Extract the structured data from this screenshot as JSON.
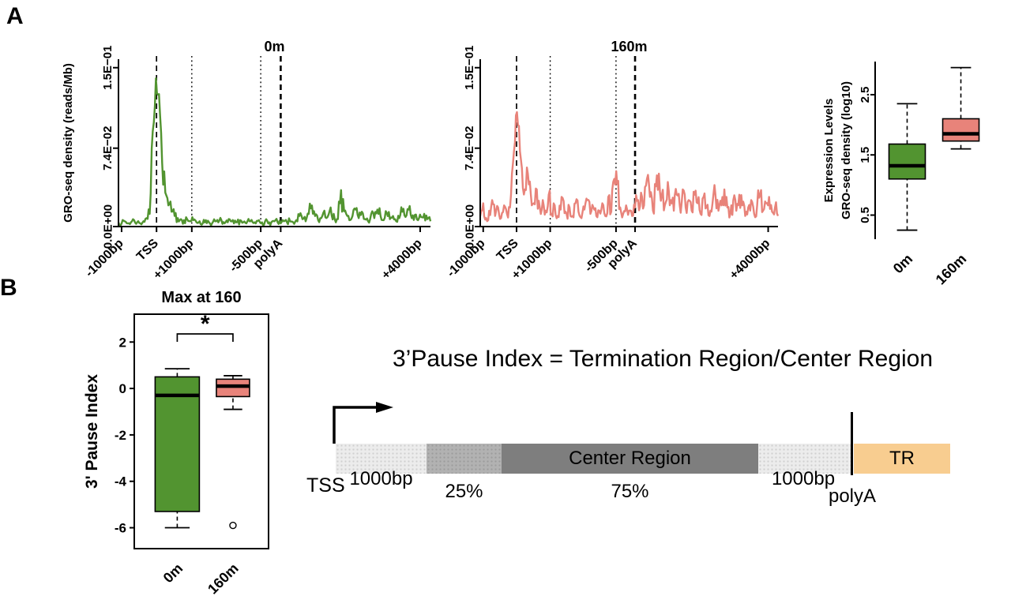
{
  "panel_labels": {
    "a": "A",
    "b": "B"
  },
  "colors": {
    "green": "#529430",
    "red": "#e8837a",
    "orange": "#f8cd90",
    "gray_light": "#ececec",
    "gray_mid": "#b2b2b2",
    "gray_dark": "#7e7e7e"
  },
  "chart_data": [
    {
      "id": "gro_0m",
      "type": "line",
      "title": "0m",
      "ylabel": "GRO-seq density (reads/Mb)",
      "yticks": [
        {
          "label": "0.0E+00",
          "value": 0
        },
        {
          "label": "7.4E−02",
          "value": 0.074
        },
        {
          "label": "1.5E−01",
          "value": 0.15
        }
      ],
      "ylim": [
        0,
        0.158
      ],
      "xticks": [
        {
          "label": "-1000bp",
          "pos": 0.01
        },
        {
          "label": "TSS",
          "pos": 0.122
        },
        {
          "label": "+1000bp",
          "pos": 0.235
        },
        {
          "label": "-500bp",
          "pos": 0.456
        },
        {
          "label": "polyA",
          "pos": 0.52
        },
        {
          "label": "+4000bp",
          "pos": 0.967
        }
      ],
      "guides": [
        {
          "pos": 0.122,
          "dash": "dashed",
          "w": 1.7
        },
        {
          "pos": 0.235,
          "dash": "dotted",
          "w": 1.4
        },
        {
          "pos": 0.456,
          "dash": "dotted",
          "w": 1.4
        },
        {
          "pos": 0.52,
          "dash": "dashed",
          "w": 2.6
        }
      ],
      "color": "#529430",
      "seed": 7,
      "y": [
        0.004,
        0.003,
        0.005,
        0.003,
        0.004,
        0.006,
        0.004,
        0.003,
        0.005,
        0.008,
        0.012,
        0.09,
        0.14,
        0.125,
        0.06,
        0.032,
        0.02,
        0.014,
        0.01,
        0.008,
        0.007,
        0.006,
        0.007,
        0.005,
        0.006,
        0.004,
        0.005,
        0.003,
        0.006,
        0.004,
        0.003,
        0.005,
        0.004,
        0.006,
        0.003,
        0.004,
        0.005,
        0.003,
        0.004,
        0.006,
        0.004,
        0.003,
        0.005,
        0.004,
        0.003,
        0.006,
        0.004,
        0.005,
        0.003,
        0.004,
        0.005,
        0.004,
        0.003,
        0.005,
        0.004,
        0.005,
        0.004,
        0.006,
        0.01,
        0.007,
        0.005,
        0.012,
        0.02,
        0.01,
        0.006,
        0.008,
        0.015,
        0.009,
        0.018,
        0.012,
        0.007,
        0.022,
        0.026,
        0.012,
        0.006,
        0.01,
        0.016,
        0.008,
        0.014,
        0.007,
        0.005,
        0.012,
        0.008,
        0.016,
        0.01,
        0.006,
        0.013,
        0.007,
        0.01,
        0.005,
        0.008,
        0.014,
        0.009,
        0.016,
        0.008,
        0.011,
        0.006,
        0.009,
        0.012,
        0.007,
        0.005
      ]
    },
    {
      "id": "gro_160m",
      "type": "line",
      "title": "160m",
      "ylabel": "",
      "yticks": [
        {
          "label": "0.0E+00",
          "value": 0
        },
        {
          "label": "7.4E−02",
          "value": 0.074
        },
        {
          "label": "1.5E−01",
          "value": 0.15
        }
      ],
      "ylim": [
        0,
        0.158
      ],
      "xticks": [
        {
          "label": "-1000bp",
          "pos": 0.01
        },
        {
          "label": "TSS",
          "pos": 0.122
        },
        {
          "label": "+1000bp",
          "pos": 0.235
        },
        {
          "label": "-500bp",
          "pos": 0.456
        },
        {
          "label": "polyA",
          "pos": 0.52
        },
        {
          "label": "+4000bp",
          "pos": 0.967
        }
      ],
      "guides": [
        {
          "pos": 0.122,
          "dash": "dashed",
          "w": 1.7
        },
        {
          "pos": 0.235,
          "dash": "dotted",
          "w": 1.4
        },
        {
          "pos": 0.456,
          "dash": "dotted",
          "w": 1.4
        },
        {
          "pos": 0.52,
          "dash": "dashed",
          "w": 2.6
        }
      ],
      "color": "#e8837a",
      "seed": 13,
      "y": [
        0.01,
        0.022,
        0.008,
        0.015,
        0.025,
        0.01,
        0.018,
        0.008,
        0.02,
        0.012,
        0.018,
        0.06,
        0.105,
        0.095,
        0.055,
        0.035,
        0.05,
        0.03,
        0.022,
        0.035,
        0.018,
        0.025,
        0.015,
        0.03,
        0.012,
        0.02,
        0.01,
        0.016,
        0.024,
        0.012,
        0.018,
        0.01,
        0.022,
        0.014,
        0.008,
        0.016,
        0.025,
        0.012,
        0.018,
        0.01,
        0.015,
        0.022,
        0.01,
        0.028,
        0.014,
        0.045,
        0.04,
        0.018,
        0.012,
        0.02,
        0.015,
        0.01,
        0.018,
        0.025,
        0.032,
        0.02,
        0.045,
        0.028,
        0.015,
        0.038,
        0.05,
        0.03,
        0.02,
        0.042,
        0.025,
        0.015,
        0.03,
        0.02,
        0.035,
        0.018,
        0.025,
        0.015,
        0.03,
        0.022,
        0.012,
        0.028,
        0.018,
        0.01,
        0.022,
        0.03,
        0.015,
        0.02,
        0.035,
        0.018,
        0.012,
        0.025,
        0.015,
        0.03,
        0.02,
        0.01,
        0.018,
        0.025,
        0.012,
        0.02,
        0.03,
        0.015,
        0.022,
        0.028,
        0.014,
        0.018,
        0.01
      ]
    },
    {
      "id": "expr_box",
      "type": "boxplot",
      "title": "",
      "ylabel_lines": [
        "Expression Levels",
        "GRO-seq density (log10)"
      ],
      "yticks": [
        0.5,
        1.5,
        2.5
      ],
      "ylim": [
        0.1,
        3.05
      ],
      "ytick_rotate": true,
      "frame": false,
      "categories": [
        "0m",
        "160m"
      ],
      "boxes": [
        {
          "label": "0m",
          "color": "#529430",
          "low": 0.25,
          "q1": 1.1,
          "med": 1.32,
          "q3": 1.68,
          "high": 2.35,
          "outliers": []
        },
        {
          "label": "160m",
          "color": "#e8837a",
          "low": 1.6,
          "q1": 1.73,
          "med": 1.85,
          "q3": 2.1,
          "high": 2.95,
          "outliers": []
        }
      ]
    },
    {
      "id": "pause_box",
      "type": "boxplot",
      "title": "Max at 160",
      "ylabel": "3' Pause Index",
      "yticks": [
        2,
        0,
        -2,
        -4,
        -6
      ],
      "ylim": [
        -6.9,
        3.2
      ],
      "ytick_rotate": false,
      "frame": true,
      "categories": [
        "0m",
        "160m"
      ],
      "boxes": [
        {
          "label": "0m",
          "color": "#529430",
          "low": -6.0,
          "q1": -5.3,
          "med": -0.3,
          "q3": 0.5,
          "high": 0.85,
          "outliers": []
        },
        {
          "label": "160m",
          "color": "#e8837a",
          "low": -0.9,
          "q1": -0.35,
          "med": 0.1,
          "q3": 0.4,
          "high": 0.55,
          "outliers": [
            -5.9
          ]
        }
      ],
      "significance": {
        "label": "*",
        "y": 2.35
      }
    }
  ],
  "schematic": {
    "title": "3’Pause Index = Termination Region/Center Region",
    "tss_label": "TSS",
    "polya_label": "polyA",
    "segments": [
      {
        "name": "upstream-1000bp",
        "label": "",
        "below": "1000bp"
      },
      {
        "name": "first-25pct",
        "label": "",
        "below": "25%"
      },
      {
        "name": "center-region",
        "label": "Center Region",
        "below": "75%"
      },
      {
        "name": "downstream-1000bp",
        "label": "",
        "below": "1000bp"
      },
      {
        "name": "termination-region",
        "label": "TR",
        "below": ""
      }
    ]
  }
}
